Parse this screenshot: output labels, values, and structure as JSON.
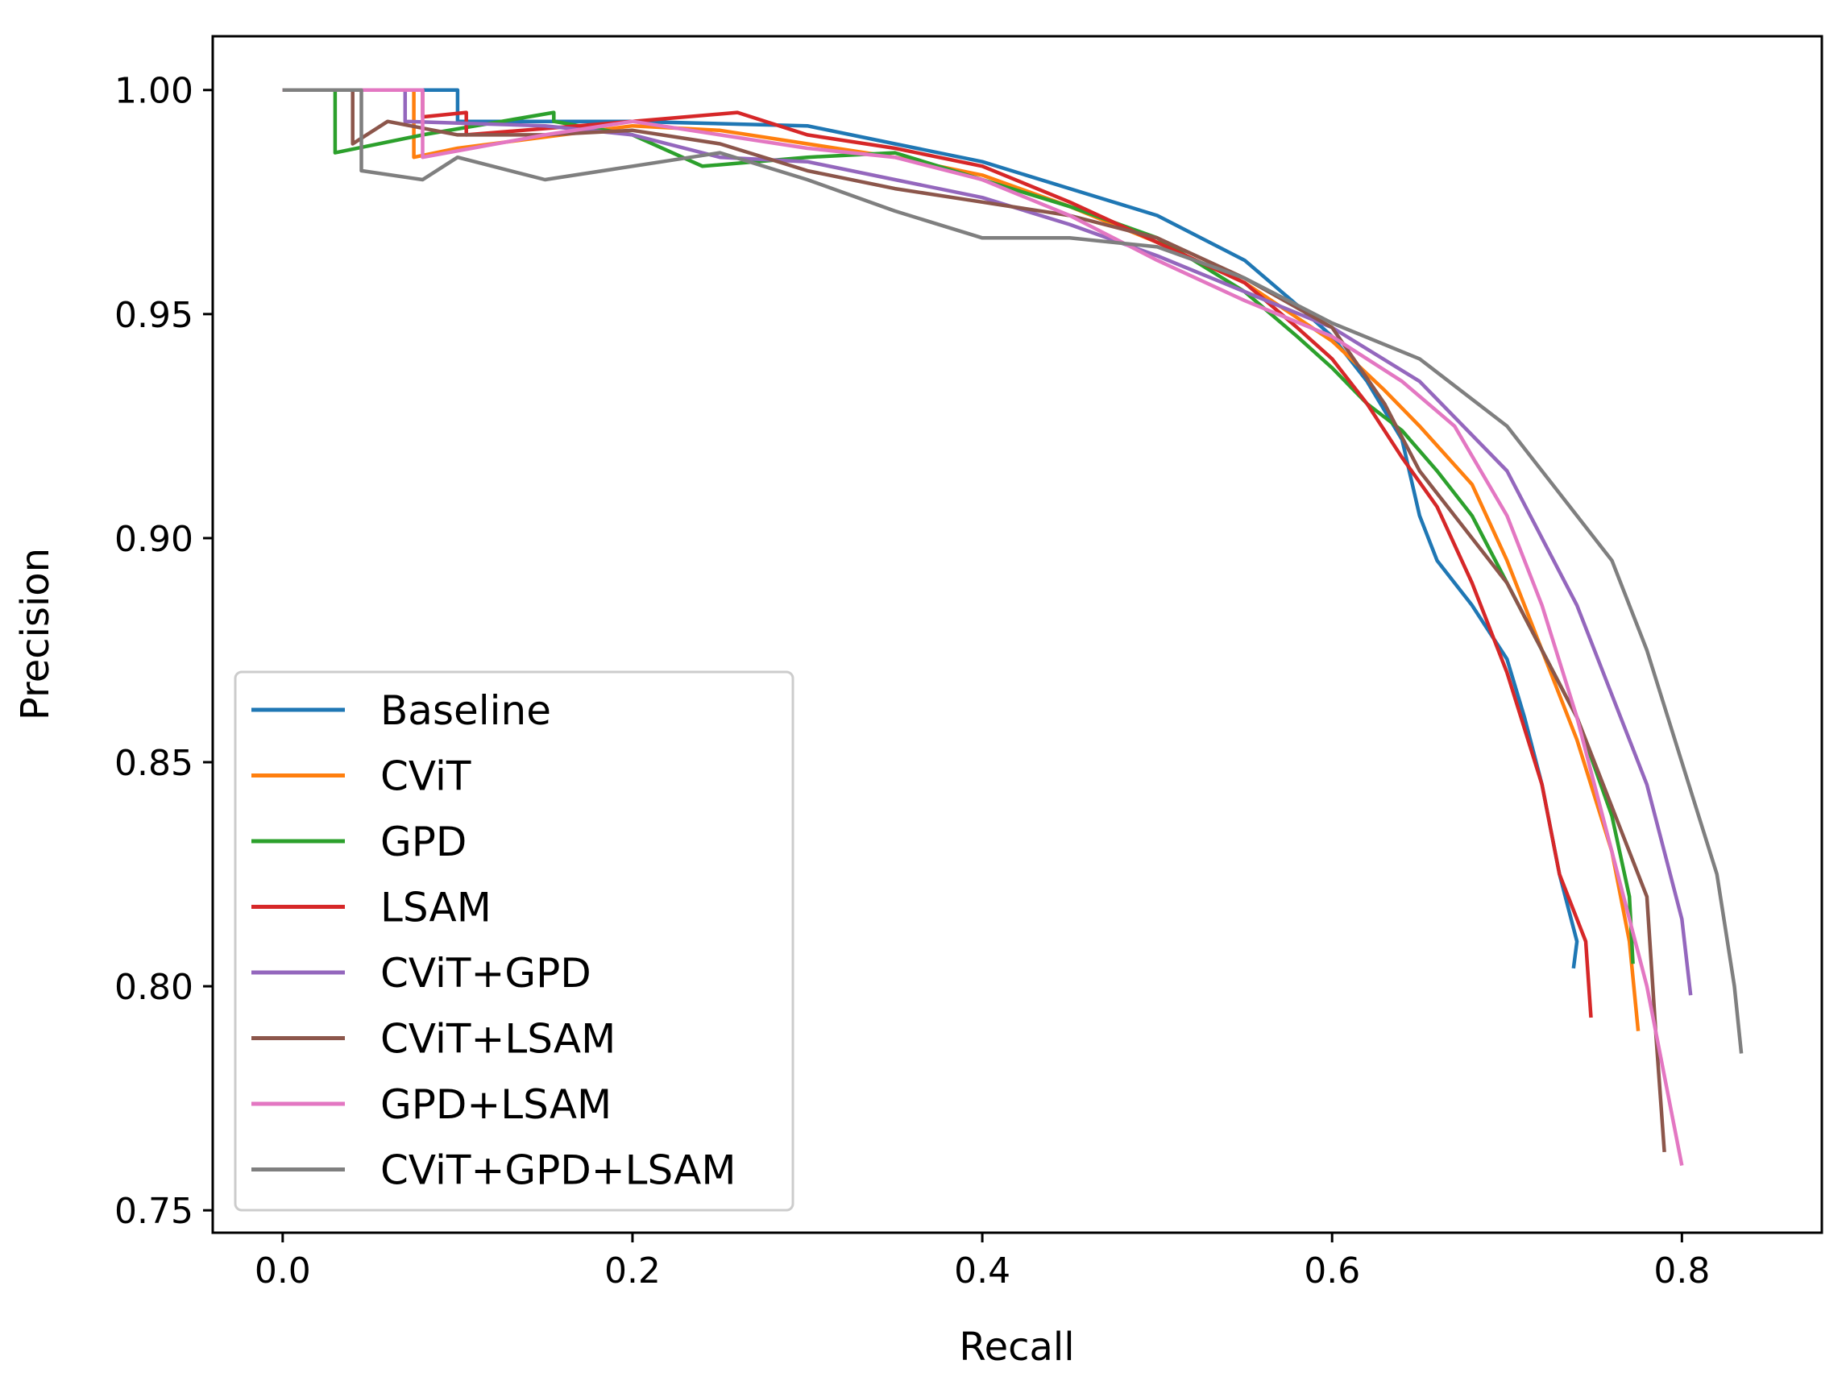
{
  "chart_data": {
    "type": "line",
    "title": "",
    "xlabel": "Recall",
    "ylabel": "Precision",
    "xlim": [
      -0.04,
      0.88
    ],
    "ylim": [
      0.745,
      1.012
    ],
    "xticks": [
      0.0,
      0.2,
      0.4,
      0.6,
      0.8
    ],
    "xtick_labels": [
      "0.0",
      "0.2",
      "0.4",
      "0.6",
      "0.8"
    ],
    "yticks": [
      0.75,
      0.8,
      0.85,
      0.9,
      0.95,
      1.0
    ],
    "ytick_labels": [
      "0.75",
      "0.80",
      "0.85",
      "0.90",
      "0.95",
      "1.00"
    ],
    "grid": false,
    "legend_position": "lower-left",
    "series": [
      {
        "name": "Baseline",
        "color": "#1f77b4",
        "points": [
          [
            0.0,
            1.0
          ],
          [
            0.1,
            1.0
          ],
          [
            0.1,
            0.993
          ],
          [
            0.2,
            0.993
          ],
          [
            0.3,
            0.992
          ],
          [
            0.35,
            0.988
          ],
          [
            0.4,
            0.984
          ],
          [
            0.45,
            0.978
          ],
          [
            0.5,
            0.972
          ],
          [
            0.55,
            0.962
          ],
          [
            0.58,
            0.952
          ],
          [
            0.6,
            0.945
          ],
          [
            0.62,
            0.935
          ],
          [
            0.64,
            0.922
          ],
          [
            0.65,
            0.905
          ],
          [
            0.66,
            0.895
          ],
          [
            0.68,
            0.885
          ],
          [
            0.7,
            0.873
          ],
          [
            0.71,
            0.86
          ],
          [
            0.72,
            0.845
          ],
          [
            0.73,
            0.825
          ],
          [
            0.74,
            0.81
          ],
          [
            0.738,
            0.804
          ]
        ]
      },
      {
        "name": "CViT",
        "color": "#ff7f0e",
        "points": [
          [
            0.0,
            1.0
          ],
          [
            0.075,
            1.0
          ],
          [
            0.075,
            0.985
          ],
          [
            0.1,
            0.987
          ],
          [
            0.2,
            0.992
          ],
          [
            0.25,
            0.991
          ],
          [
            0.3,
            0.988
          ],
          [
            0.35,
            0.985
          ],
          [
            0.4,
            0.981
          ],
          [
            0.45,
            0.974
          ],
          [
            0.5,
            0.966
          ],
          [
            0.55,
            0.957
          ],
          [
            0.6,
            0.944
          ],
          [
            0.63,
            0.933
          ],
          [
            0.65,
            0.925
          ],
          [
            0.68,
            0.912
          ],
          [
            0.7,
            0.895
          ],
          [
            0.72,
            0.875
          ],
          [
            0.74,
            0.855
          ],
          [
            0.76,
            0.83
          ],
          [
            0.77,
            0.81
          ],
          [
            0.775,
            0.79
          ]
        ]
      },
      {
        "name": "GPD",
        "color": "#2ca02c",
        "points": [
          [
            0.0,
            1.0
          ],
          [
            0.03,
            1.0
          ],
          [
            0.03,
            0.986
          ],
          [
            0.08,
            0.99
          ],
          [
            0.155,
            0.995
          ],
          [
            0.155,
            0.993
          ],
          [
            0.2,
            0.99
          ],
          [
            0.24,
            0.983
          ],
          [
            0.3,
            0.985
          ],
          [
            0.35,
            0.986
          ],
          [
            0.4,
            0.98
          ],
          [
            0.45,
            0.974
          ],
          [
            0.5,
            0.967
          ],
          [
            0.55,
            0.955
          ],
          [
            0.58,
            0.945
          ],
          [
            0.6,
            0.938
          ],
          [
            0.62,
            0.93
          ],
          [
            0.64,
            0.924
          ],
          [
            0.66,
            0.915
          ],
          [
            0.68,
            0.905
          ],
          [
            0.7,
            0.89
          ],
          [
            0.72,
            0.875
          ],
          [
            0.74,
            0.86
          ],
          [
            0.76,
            0.838
          ],
          [
            0.77,
            0.82
          ],
          [
            0.772,
            0.805
          ]
        ]
      },
      {
        "name": "LSAM",
        "color": "#d62728",
        "points": [
          [
            0.0,
            1.0
          ],
          [
            0.08,
            1.0
          ],
          [
            0.08,
            0.994
          ],
          [
            0.105,
            0.995
          ],
          [
            0.105,
            0.99
          ],
          [
            0.2,
            0.993
          ],
          [
            0.26,
            0.995
          ],
          [
            0.3,
            0.99
          ],
          [
            0.35,
            0.987
          ],
          [
            0.4,
            0.983
          ],
          [
            0.45,
            0.975
          ],
          [
            0.5,
            0.966
          ],
          [
            0.55,
            0.957
          ],
          [
            0.58,
            0.947
          ],
          [
            0.6,
            0.94
          ],
          [
            0.62,
            0.93
          ],
          [
            0.64,
            0.918
          ],
          [
            0.66,
            0.907
          ],
          [
            0.68,
            0.89
          ],
          [
            0.7,
            0.87
          ],
          [
            0.72,
            0.845
          ],
          [
            0.73,
            0.825
          ],
          [
            0.745,
            0.81
          ],
          [
            0.748,
            0.793
          ]
        ]
      },
      {
        "name": "CViT+GPD",
        "color": "#9467bd",
        "points": [
          [
            0.0,
            1.0
          ],
          [
            0.07,
            1.0
          ],
          [
            0.07,
            0.993
          ],
          [
            0.15,
            0.992
          ],
          [
            0.2,
            0.99
          ],
          [
            0.25,
            0.985
          ],
          [
            0.3,
            0.984
          ],
          [
            0.35,
            0.98
          ],
          [
            0.4,
            0.976
          ],
          [
            0.45,
            0.97
          ],
          [
            0.5,
            0.963
          ],
          [
            0.55,
            0.955
          ],
          [
            0.6,
            0.947
          ],
          [
            0.65,
            0.935
          ],
          [
            0.7,
            0.915
          ],
          [
            0.72,
            0.9
          ],
          [
            0.74,
            0.885
          ],
          [
            0.76,
            0.865
          ],
          [
            0.78,
            0.845
          ],
          [
            0.79,
            0.83
          ],
          [
            0.8,
            0.815
          ],
          [
            0.805,
            0.798
          ]
        ]
      },
      {
        "name": "CViT+LSAM",
        "color": "#8c564b",
        "points": [
          [
            0.0,
            1.0
          ],
          [
            0.04,
            1.0
          ],
          [
            0.04,
            0.988
          ],
          [
            0.06,
            0.993
          ],
          [
            0.1,
            0.99
          ],
          [
            0.15,
            0.99
          ],
          [
            0.2,
            0.991
          ],
          [
            0.25,
            0.988
          ],
          [
            0.3,
            0.982
          ],
          [
            0.35,
            0.978
          ],
          [
            0.4,
            0.975
          ],
          [
            0.45,
            0.972
          ],
          [
            0.5,
            0.967
          ],
          [
            0.55,
            0.958
          ],
          [
            0.6,
            0.947
          ],
          [
            0.63,
            0.93
          ],
          [
            0.65,
            0.915
          ],
          [
            0.67,
            0.905
          ],
          [
            0.7,
            0.89
          ],
          [
            0.72,
            0.875
          ],
          [
            0.74,
            0.86
          ],
          [
            0.76,
            0.84
          ],
          [
            0.78,
            0.82
          ],
          [
            0.785,
            0.79
          ],
          [
            0.79,
            0.763
          ]
        ]
      },
      {
        "name": "GPD+LSAM",
        "color": "#e377c2",
        "points": [
          [
            0.0,
            1.0
          ],
          [
            0.08,
            1.0
          ],
          [
            0.08,
            0.985
          ],
          [
            0.15,
            0.99
          ],
          [
            0.2,
            0.993
          ],
          [
            0.25,
            0.99
          ],
          [
            0.3,
            0.987
          ],
          [
            0.35,
            0.985
          ],
          [
            0.4,
            0.98
          ],
          [
            0.45,
            0.972
          ],
          [
            0.5,
            0.962
          ],
          [
            0.55,
            0.953
          ],
          [
            0.6,
            0.945
          ],
          [
            0.64,
            0.935
          ],
          [
            0.67,
            0.925
          ],
          [
            0.7,
            0.905
          ],
          [
            0.72,
            0.885
          ],
          [
            0.74,
            0.86
          ],
          [
            0.76,
            0.83
          ],
          [
            0.78,
            0.8
          ],
          [
            0.79,
            0.78
          ],
          [
            0.8,
            0.76
          ]
        ]
      },
      {
        "name": "CViT+GPD+LSAM",
        "color": "#7f7f7f",
        "points": [
          [
            0.0,
            1.0
          ],
          [
            0.045,
            1.0
          ],
          [
            0.045,
            0.982
          ],
          [
            0.08,
            0.98
          ],
          [
            0.1,
            0.985
          ],
          [
            0.15,
            0.98
          ],
          [
            0.2,
            0.983
          ],
          [
            0.25,
            0.986
          ],
          [
            0.3,
            0.98
          ],
          [
            0.35,
            0.973
          ],
          [
            0.4,
            0.967
          ],
          [
            0.45,
            0.967
          ],
          [
            0.5,
            0.965
          ],
          [
            0.55,
            0.958
          ],
          [
            0.6,
            0.948
          ],
          [
            0.65,
            0.94
          ],
          [
            0.7,
            0.925
          ],
          [
            0.73,
            0.91
          ],
          [
            0.76,
            0.895
          ],
          [
            0.78,
            0.875
          ],
          [
            0.8,
            0.85
          ],
          [
            0.82,
            0.825
          ],
          [
            0.83,
            0.8
          ],
          [
            0.834,
            0.785
          ]
        ]
      }
    ]
  }
}
